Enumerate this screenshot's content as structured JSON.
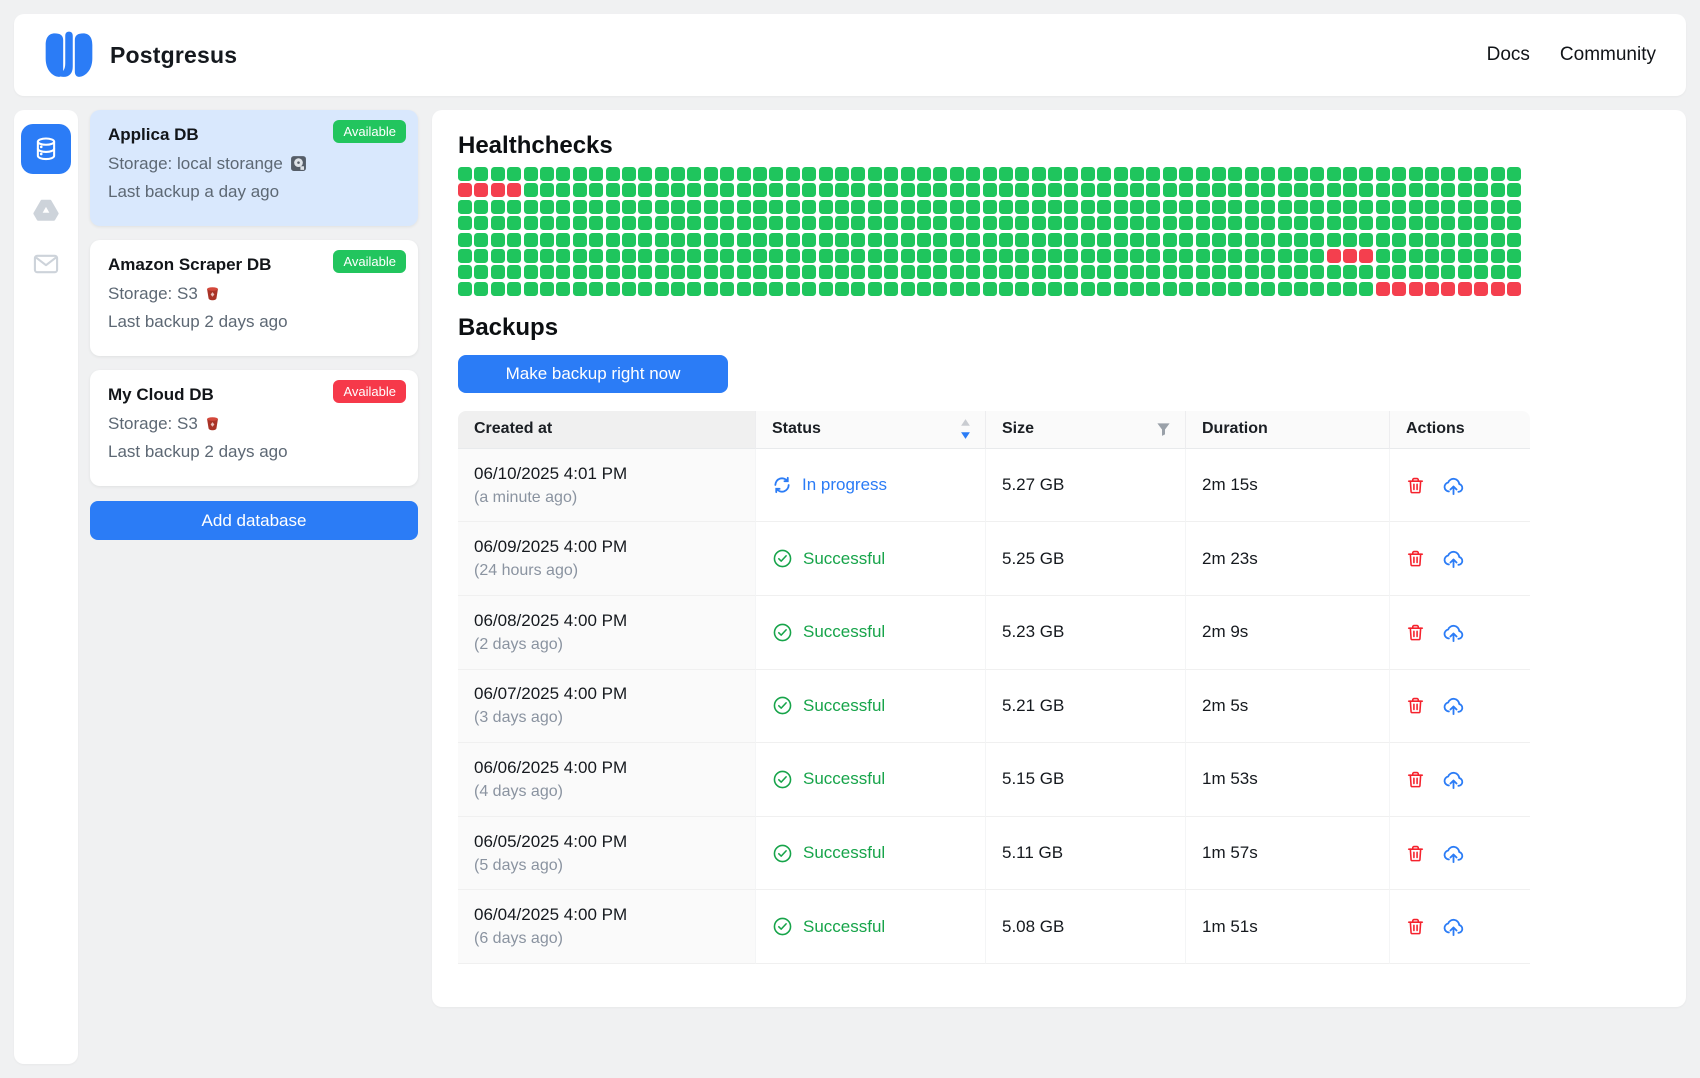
{
  "header": {
    "app_name": "Postgresus",
    "nav": [
      {
        "label": "Docs"
      },
      {
        "label": "Community"
      }
    ]
  },
  "rail": {
    "items": [
      {
        "icon": "database-icon",
        "active": true
      },
      {
        "icon": "drive-icon",
        "active": false
      },
      {
        "icon": "mail-icon",
        "active": false
      }
    ]
  },
  "databases": {
    "cards": [
      {
        "title": "Applica DB",
        "badge": "Available",
        "badge_color": "#22c55e",
        "storage_line": "Storage: local storange",
        "storage_icon": "hard-disk-icon",
        "last_backup": "Last backup a day ago",
        "selected": true
      },
      {
        "title": "Amazon Scraper DB",
        "badge": "Available",
        "badge_color": "#22c55e",
        "storage_line": "Storage: S3",
        "storage_icon": "s3-icon",
        "last_backup": "Last backup 2 days ago",
        "selected": false
      },
      {
        "title": "My Cloud DB",
        "badge": "Available",
        "badge_color": "#f6394a",
        "storage_line": "Storage: S3",
        "storage_icon": "s3-icon",
        "last_backup": "Last backup 2 days ago",
        "selected": false
      }
    ],
    "add_button_label": "Add database"
  },
  "healthchecks": {
    "title": "Healthchecks",
    "grid": {
      "columns": 65,
      "rows": 8,
      "ok_color": "#1fc55d",
      "fail_color": "#f43f4e",
      "red_cells": [
        [
          1,
          0
        ],
        [
          1,
          1
        ],
        [
          1,
          2
        ],
        [
          1,
          3
        ],
        [
          5,
          53
        ],
        [
          5,
          54
        ],
        [
          5,
          55
        ],
        [
          7,
          56
        ],
        [
          7,
          57
        ],
        [
          7,
          58
        ],
        [
          7,
          59
        ],
        [
          7,
          60
        ],
        [
          7,
          61
        ],
        [
          7,
          62
        ],
        [
          7,
          63
        ],
        [
          7,
          64
        ]
      ]
    }
  },
  "backups": {
    "title": "Backups",
    "make_backup_label": "Make backup right now",
    "table": {
      "columns": [
        "Created at",
        "Status",
        "Size",
        "Duration",
        "Actions"
      ],
      "header_icons": {
        "status": "sort-carets-icon",
        "size": "filter-funnel-icon"
      },
      "action_icons": [
        "trash-icon",
        "cloud-upload-icon"
      ],
      "rows": [
        {
          "created_at": "06/10/2025 4:01 PM",
          "relative": "(a minute ago)",
          "status": "In progress",
          "status_type": "inprogress",
          "size": "5.27 GB",
          "duration": "2m 15s"
        },
        {
          "created_at": "06/09/2025 4:00 PM",
          "relative": "(24 hours ago)",
          "status": "Successful",
          "status_type": "successful",
          "size": "5.25 GB",
          "duration": "2m 23s"
        },
        {
          "created_at": "06/08/2025 4:00 PM",
          "relative": "(2 days ago)",
          "status": "Successful",
          "status_type": "successful",
          "size": "5.23 GB",
          "duration": "2m 9s"
        },
        {
          "created_at": "06/07/2025 4:00 PM",
          "relative": "(3 days ago)",
          "status": "Successful",
          "status_type": "successful",
          "size": "5.21 GB",
          "duration": "2m 5s"
        },
        {
          "created_at": "06/06/2025 4:00 PM",
          "relative": "(4 days ago)",
          "status": "Successful",
          "status_type": "successful",
          "size": "5.15 GB",
          "duration": "1m 53s"
        },
        {
          "created_at": "06/05/2025 4:00 PM",
          "relative": "(5 days ago)",
          "status": "Successful",
          "status_type": "successful",
          "size": "5.11 GB",
          "duration": "1m 57s"
        },
        {
          "created_at": "06/04/2025 4:00 PM",
          "relative": "(6 days ago)",
          "status": "Successful",
          "status_type": "successful",
          "size": "5.08 GB",
          "duration": "1m 51s"
        }
      ]
    }
  },
  "colors": {
    "primary_blue": "#2b7cf6",
    "success_green": "#17a44a",
    "danger_red": "#f5222d",
    "selected_card_bg": "#d9e8fd"
  }
}
